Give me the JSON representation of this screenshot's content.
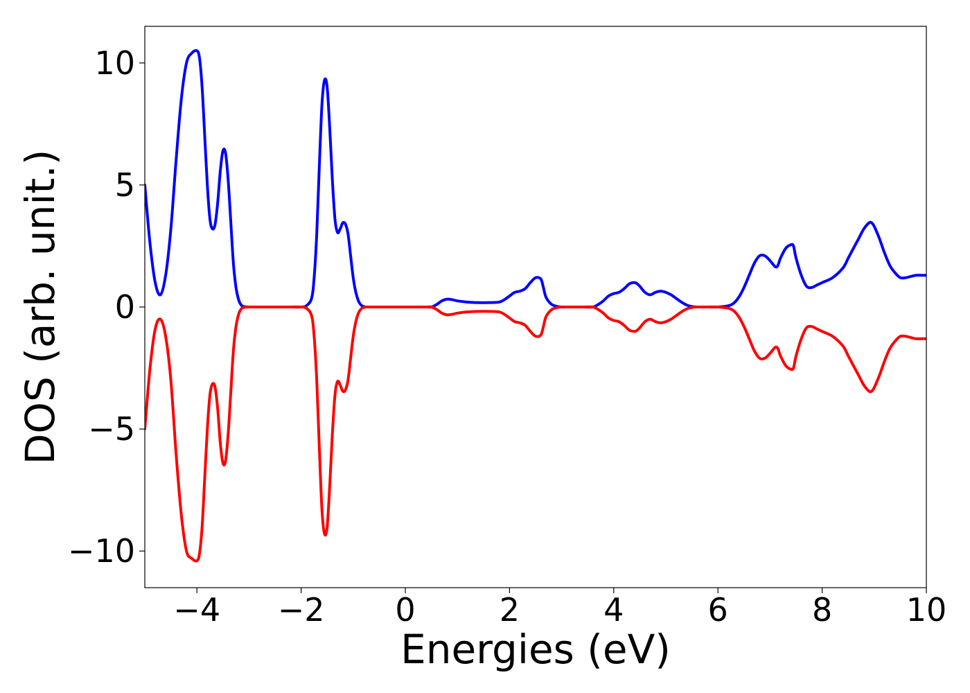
{
  "chart_data": {
    "type": "line",
    "title": "",
    "xlabel": "Energies (eV)",
    "ylabel": "DOS (arb. unit.)",
    "xlim": [
      -5,
      10
    ],
    "ylim": [
      -11.5,
      11.5
    ],
    "xticks": [
      -4,
      -2,
      0,
      2,
      4,
      6,
      8,
      10
    ],
    "yticks": [
      -10,
      -5,
      0,
      5,
      10
    ],
    "xtick_labels": [
      "−4",
      "−2",
      "0",
      "2",
      "4",
      "6",
      "8",
      "10"
    ],
    "ytick_labels": [
      "−10",
      "−5",
      "0",
      "5",
      "10"
    ],
    "grid": false,
    "legend": "none",
    "series": [
      {
        "color": "#0000ff",
        "x": [
          -5.0,
          -4.9,
          -4.8,
          -4.7,
          -4.6,
          -4.5,
          -4.4,
          -4.3,
          -4.2,
          -4.1,
          -4.0,
          -3.95,
          -3.9,
          -3.85,
          -3.8,
          -3.75,
          -3.7,
          -3.65,
          -3.6,
          -3.55,
          -3.5,
          -3.45,
          -3.4,
          -3.35,
          -3.3,
          -3.25,
          -3.2,
          -3.15,
          -3.1,
          -3.0,
          -2.9,
          -2.8,
          -2.6,
          -2.4,
          -2.2,
          -2.0,
          -1.9,
          -1.8,
          -1.75,
          -1.7,
          -1.65,
          -1.6,
          -1.55,
          -1.5,
          -1.45,
          -1.4,
          -1.35,
          -1.3,
          -1.25,
          -1.2,
          -1.15,
          -1.1,
          -1.05,
          -1.0,
          -0.95,
          -0.9,
          -0.85,
          -0.8,
          -0.75,
          -0.7,
          -0.65,
          -0.6,
          -0.5,
          -0.4,
          -0.3,
          -0.2,
          0.0,
          0.2,
          0.4,
          0.5,
          0.6,
          0.7,
          0.8,
          0.9,
          1.0,
          1.2,
          1.4,
          1.6,
          1.8,
          1.9,
          2.0,
          2.1,
          2.2,
          2.3,
          2.4,
          2.5,
          2.6,
          2.65,
          2.7,
          2.8,
          2.9,
          3.0,
          3.1,
          3.2,
          3.4,
          3.6,
          3.7,
          3.8,
          3.9,
          4.0,
          4.1,
          4.2,
          4.3,
          4.4,
          4.45,
          4.5,
          4.6,
          4.7,
          4.8,
          4.9,
          5.0,
          5.1,
          5.2,
          5.3,
          5.4,
          5.5,
          5.6,
          5.8,
          6.0,
          6.2,
          6.3,
          6.4,
          6.5,
          6.6,
          6.7,
          6.8,
          6.9,
          7.0,
          7.1,
          7.15,
          7.2,
          7.3,
          7.4,
          7.45,
          7.5,
          7.6,
          7.7,
          7.8,
          7.9,
          8.0,
          8.2,
          8.4,
          8.5,
          8.6,
          8.7,
          8.8,
          8.9,
          8.95,
          9.0,
          9.1,
          9.2,
          9.3,
          9.4,
          9.5,
          9.6,
          9.7,
          9.8,
          9.9,
          10.0
        ],
        "y": [
          5.0,
          2.6,
          1.0,
          0.5,
          1.3,
          3.2,
          6.0,
          8.5,
          10.0,
          10.4,
          10.5,
          10.2,
          9.0,
          7.0,
          5.0,
          3.6,
          3.2,
          3.4,
          4.3,
          5.6,
          6.4,
          6.3,
          5.2,
          3.5,
          1.8,
          0.8,
          0.3,
          0.08,
          0.02,
          0.0,
          0.0,
          0.0,
          0.0,
          0.0,
          0.0,
          0.0,
          0.05,
          0.35,
          1.2,
          3.0,
          5.8,
          8.3,
          9.3,
          9.0,
          7.3,
          5.2,
          3.6,
          3.05,
          3.2,
          3.45,
          3.4,
          3.0,
          2.1,
          1.2,
          0.6,
          0.25,
          0.08,
          0.02,
          0.0,
          0.0,
          0.0,
          0.0,
          0.0,
          0.0,
          0.0,
          0.0,
          0.0,
          0.0,
          0.0,
          0.0,
          0.1,
          0.25,
          0.32,
          0.3,
          0.25,
          0.2,
          0.18,
          0.18,
          0.2,
          0.3,
          0.45,
          0.6,
          0.65,
          0.75,
          1.0,
          1.2,
          1.15,
          0.8,
          0.4,
          0.12,
          0.03,
          0.0,
          0.0,
          0.0,
          0.0,
          0.0,
          0.1,
          0.25,
          0.45,
          0.55,
          0.6,
          0.75,
          0.95,
          1.0,
          0.95,
          0.85,
          0.6,
          0.5,
          0.6,
          0.65,
          0.6,
          0.5,
          0.35,
          0.2,
          0.08,
          0.02,
          0.0,
          0.0,
          0.0,
          0.05,
          0.15,
          0.4,
          0.8,
          1.3,
          1.8,
          2.1,
          2.1,
          1.9,
          1.65,
          1.7,
          2.0,
          2.4,
          2.55,
          2.5,
          2.0,
          1.3,
          0.85,
          0.8,
          0.9,
          1.0,
          1.2,
          1.6,
          2.0,
          2.4,
          2.8,
          3.2,
          3.45,
          3.45,
          3.3,
          2.8,
          2.2,
          1.7,
          1.4,
          1.2,
          1.2,
          1.25,
          1.3,
          1.3,
          1.3
        ]
      },
      {
        "color": "#ff0000",
        "x": [
          -5.0,
          -4.9,
          -4.8,
          -4.7,
          -4.6,
          -4.5,
          -4.4,
          -4.3,
          -4.2,
          -4.1,
          -4.0,
          -3.95,
          -3.9,
          -3.85,
          -3.8,
          -3.75,
          -3.7,
          -3.65,
          -3.6,
          -3.55,
          -3.5,
          -3.45,
          -3.4,
          -3.35,
          -3.3,
          -3.25,
          -3.2,
          -3.15,
          -3.1,
          -3.0,
          -2.9,
          -2.8,
          -2.6,
          -2.4,
          -2.2,
          -2.0,
          -1.9,
          -1.8,
          -1.75,
          -1.7,
          -1.65,
          -1.6,
          -1.55,
          -1.5,
          -1.45,
          -1.4,
          -1.35,
          -1.3,
          -1.25,
          -1.2,
          -1.15,
          -1.1,
          -1.05,
          -1.0,
          -0.95,
          -0.9,
          -0.85,
          -0.8,
          -0.75,
          -0.7,
          -0.65,
          -0.6,
          -0.5,
          -0.4,
          -0.3,
          -0.2,
          0.0,
          0.2,
          0.4,
          0.5,
          0.6,
          0.7,
          0.8,
          0.9,
          1.0,
          1.2,
          1.4,
          1.6,
          1.8,
          1.9,
          2.0,
          2.1,
          2.2,
          2.3,
          2.4,
          2.5,
          2.6,
          2.65,
          2.7,
          2.8,
          2.9,
          3.0,
          3.1,
          3.2,
          3.4,
          3.6,
          3.7,
          3.8,
          3.9,
          4.0,
          4.1,
          4.2,
          4.3,
          4.4,
          4.45,
          4.5,
          4.6,
          4.7,
          4.8,
          4.9,
          5.0,
          5.1,
          5.2,
          5.3,
          5.4,
          5.5,
          5.6,
          5.8,
          6.0,
          6.2,
          6.3,
          6.4,
          6.5,
          6.6,
          6.7,
          6.8,
          6.9,
          7.0,
          7.1,
          7.15,
          7.2,
          7.3,
          7.4,
          7.45,
          7.5,
          7.6,
          7.7,
          7.8,
          7.9,
          8.0,
          8.2,
          8.4,
          8.5,
          8.6,
          8.7,
          8.8,
          8.9,
          8.95,
          9.0,
          9.1,
          9.2,
          9.3,
          9.4,
          9.5,
          9.6,
          9.7,
          9.8,
          9.9,
          10.0
        ],
        "y": [
          -5.0,
          -2.5,
          -0.9,
          -0.5,
          -1.2,
          -3.0,
          -6.0,
          -8.5,
          -10.0,
          -10.3,
          -10.4,
          -10.1,
          -9.0,
          -7.0,
          -5.0,
          -3.6,
          -3.15,
          -3.3,
          -4.2,
          -5.6,
          -6.4,
          -6.3,
          -5.2,
          -3.5,
          -1.8,
          -0.8,
          -0.3,
          -0.08,
          -0.02,
          0.0,
          0.0,
          0.0,
          0.0,
          0.0,
          0.0,
          0.0,
          -0.05,
          -0.35,
          -1.2,
          -3.0,
          -5.8,
          -8.3,
          -9.3,
          -9.0,
          -7.3,
          -5.2,
          -3.6,
          -3.05,
          -3.2,
          -3.45,
          -3.4,
          -3.0,
          -2.1,
          -1.2,
          -0.6,
          -0.25,
          -0.08,
          -0.02,
          0.0,
          0.0,
          0.0,
          0.0,
          0.0,
          0.0,
          0.0,
          0.0,
          0.0,
          0.0,
          0.0,
          0.0,
          -0.1,
          -0.25,
          -0.32,
          -0.3,
          -0.25,
          -0.2,
          -0.18,
          -0.18,
          -0.2,
          -0.3,
          -0.45,
          -0.6,
          -0.65,
          -0.75,
          -1.0,
          -1.2,
          -1.15,
          -0.8,
          -0.4,
          -0.12,
          -0.03,
          0.0,
          0.0,
          0.0,
          0.0,
          0.0,
          -0.1,
          -0.25,
          -0.45,
          -0.55,
          -0.6,
          -0.75,
          -0.95,
          -1.0,
          -0.95,
          -0.85,
          -0.6,
          -0.5,
          -0.6,
          -0.65,
          -0.6,
          -0.5,
          -0.35,
          -0.2,
          -0.08,
          -0.02,
          0.0,
          0.0,
          0.0,
          -0.05,
          -0.15,
          -0.4,
          -0.8,
          -1.3,
          -1.8,
          -2.1,
          -2.1,
          -1.9,
          -1.65,
          -1.7,
          -2.0,
          -2.4,
          -2.55,
          -2.5,
          -2.0,
          -1.3,
          -0.85,
          -0.8,
          -0.9,
          -1.0,
          -1.2,
          -1.6,
          -2.0,
          -2.4,
          -2.8,
          -3.2,
          -3.45,
          -3.45,
          -3.3,
          -2.8,
          -2.2,
          -1.7,
          -1.4,
          -1.2,
          -1.2,
          -1.25,
          -1.3,
          -1.3,
          -1.3
        ]
      }
    ]
  }
}
